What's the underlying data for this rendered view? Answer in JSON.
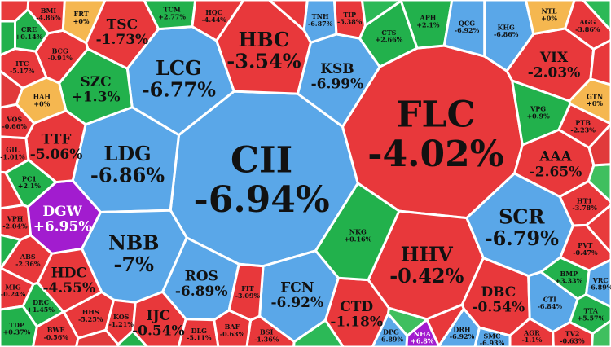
{
  "chart_data": {
    "type": "voronoi-treemap",
    "title": "",
    "value_unit": "% change",
    "status_colors": {
      "up": "#22b14c",
      "down": "#e8383b",
      "floor": "#5aa7e8",
      "ceiling": "#a21ccf",
      "unchanged": "#f5b750"
    },
    "stocks": [
      {
        "ticker": "CII",
        "change": "-6.94%",
        "status": "floor",
        "size": "xl"
      },
      {
        "ticker": "FLC",
        "change": "-4.02%",
        "status": "down",
        "size": "xl"
      },
      {
        "ticker": "LCG",
        "change": "-6.77%",
        "status": "floor",
        "size": "l"
      },
      {
        "ticker": "LDG",
        "change": "-6.86%",
        "status": "floor",
        "size": "l"
      },
      {
        "ticker": "NBB",
        "change": "-7%",
        "status": "floor",
        "size": "l"
      },
      {
        "ticker": "HBC",
        "change": "-3.54%",
        "status": "down",
        "size": "l"
      },
      {
        "ticker": "HHV",
        "change": "-0.42%",
        "status": "down",
        "size": "l"
      },
      {
        "ticker": "SCR",
        "change": "-6.79%",
        "status": "floor",
        "size": "l"
      },
      {
        "ticker": "SZC",
        "change": "+1.3%",
        "status": "up",
        "size": "m"
      },
      {
        "ticker": "DGW",
        "change": "+6.95%",
        "status": "ceiling",
        "size": "m"
      },
      {
        "ticker": "KSB",
        "change": "-6.99%",
        "status": "floor",
        "size": "m"
      },
      {
        "ticker": "TSC",
        "change": "-1.73%",
        "status": "down",
        "size": "m"
      },
      {
        "ticker": "VIX",
        "change": "-2.03%",
        "status": "down",
        "size": "m"
      },
      {
        "ticker": "AAA",
        "change": "-2.65%",
        "status": "down",
        "size": "m"
      },
      {
        "ticker": "ROS",
        "change": "-6.89%",
        "status": "floor",
        "size": "m"
      },
      {
        "ticker": "FCN",
        "change": "-6.92%",
        "status": "floor",
        "size": "m"
      },
      {
        "ticker": "TTF",
        "change": "-5.06%",
        "status": "down",
        "size": "m"
      },
      {
        "ticker": "HDC",
        "change": "-4.55%",
        "status": "down",
        "size": "m"
      },
      {
        "ticker": "DBC",
        "change": "-0.54%",
        "status": "down",
        "size": "m"
      },
      {
        "ticker": "CTD",
        "change": "-1.18%",
        "status": "down",
        "size": "m"
      },
      {
        "ticker": "IJC",
        "change": "-0.54%",
        "status": "down",
        "size": "m"
      },
      {
        "ticker": "KHG",
        "change": "-6.86%",
        "status": "floor",
        "size": "s"
      },
      {
        "ticker": "APH",
        "change": "+2.1%",
        "status": "up",
        "size": "s"
      },
      {
        "ticker": "CTS",
        "change": "+2.66%",
        "status": "up",
        "size": "s"
      },
      {
        "ticker": "QCG",
        "change": "-6.92%",
        "status": "floor",
        "size": "s"
      },
      {
        "ticker": "NTL",
        "change": "+0%",
        "status": "unchanged",
        "size": "s"
      },
      {
        "ticker": "AGG",
        "change": "-3.86%",
        "status": "down",
        "size": "s"
      },
      {
        "ticker": "VPG",
        "change": "+0.9%",
        "status": "up",
        "size": "s"
      },
      {
        "ticker": "GTN",
        "change": "+0%",
        "status": "unchanged",
        "size": "s"
      },
      {
        "ticker": "PTB",
        "change": "-2.23%",
        "status": "down",
        "size": "s"
      },
      {
        "ticker": "HT1",
        "change": "-3.78%",
        "status": "down",
        "size": "s"
      },
      {
        "ticker": "PVT",
        "change": "-0.47%",
        "status": "down",
        "size": "s"
      },
      {
        "ticker": "NKG",
        "change": "+0.16%",
        "status": "up",
        "size": "s"
      },
      {
        "ticker": "CTI",
        "change": "-6.84%",
        "status": "floor",
        "size": "s"
      },
      {
        "ticker": "BMP",
        "change": "+3.33%",
        "status": "up",
        "size": "s"
      },
      {
        "ticker": "HAH",
        "change": "+0%",
        "status": "unchanged",
        "size": "s"
      },
      {
        "ticker": "PC1",
        "change": "+2.1%",
        "status": "up",
        "size": "s"
      },
      {
        "ticker": "ABS",
        "change": "-2.36%",
        "status": "down",
        "size": "s"
      },
      {
        "ticker": "VPH",
        "change": "-2.04%",
        "status": "down",
        "size": "s"
      },
      {
        "ticker": "GIL",
        "change": "-1.01%",
        "status": "down",
        "size": "s"
      },
      {
        "ticker": "VOS",
        "change": "-0.66%",
        "status": "down",
        "size": "s"
      },
      {
        "ticker": "ITC",
        "change": "-5.17%",
        "status": "down",
        "size": "s"
      },
      {
        "ticker": "BCG",
        "change": "-0.91%",
        "status": "down",
        "size": "s"
      },
      {
        "ticker": "FRT",
        "change": "+0%",
        "status": "unchanged",
        "size": "s"
      },
      {
        "ticker": "TCM",
        "change": "+2.77%",
        "status": "up",
        "size": "s"
      },
      {
        "ticker": "HHS",
        "change": "-5.25%",
        "status": "down",
        "size": "s"
      },
      {
        "ticker": "DRC",
        "change": "+1.45%",
        "status": "up",
        "size": "s"
      },
      {
        "ticker": "MIG",
        "change": "-0.24%",
        "status": "down",
        "size": "s"
      },
      {
        "ticker": "TDP",
        "change": "+0.37%",
        "status": "up",
        "size": "s"
      },
      {
        "ticker": "BWE",
        "change": "-0.56%",
        "status": "down",
        "size": "s"
      },
      {
        "ticker": "KOS",
        "change": "-1.21%",
        "status": "down",
        "size": "s"
      },
      {
        "ticker": "DPG",
        "change": "-6.89%",
        "status": "floor",
        "size": "s"
      },
      {
        "ticker": "NHA",
        "change": "+6.8%",
        "status": "ceiling",
        "size": "s"
      },
      {
        "ticker": "DRH",
        "change": "-6.92%",
        "status": "floor",
        "size": "s"
      },
      {
        "ticker": "TTA",
        "change": "+5.57%",
        "status": "up",
        "size": "s"
      },
      {
        "ticker": "VRC",
        "change": "-6.89%",
        "status": "floor",
        "size": "s"
      },
      {
        "ticker": "TNH",
        "change": "-6.87%",
        "status": "floor",
        "size": "s"
      },
      {
        "ticker": "TIP",
        "change": "-5.38%",
        "status": "down",
        "size": "s"
      },
      {
        "ticker": "HQC",
        "change": "-4.44%",
        "status": "down",
        "size": "s"
      },
      {
        "ticker": "BMI",
        "change": "-4.86%",
        "status": "down",
        "size": "s"
      },
      {
        "ticker": "CRE",
        "change": "+0.14%",
        "status": "up",
        "size": "s"
      },
      {
        "ticker": "FIT",
        "change": "-3.09%",
        "status": "down",
        "size": "s"
      },
      {
        "ticker": "DLG",
        "change": "-5.11%",
        "status": "down",
        "size": "s"
      },
      {
        "ticker": "BSI",
        "change": "-1.36%",
        "status": "down",
        "size": "s"
      },
      {
        "ticker": "BAF",
        "change": "-0.63%",
        "status": "down",
        "size": "s"
      },
      {
        "ticker": "TV2",
        "change": "-0.63%",
        "status": "down",
        "size": "s"
      },
      {
        "ticker": "AGR",
        "change": "-1.1%",
        "status": "down",
        "size": "s"
      },
      {
        "ticker": "SMC",
        "change": "-6.93%",
        "status": "floor",
        "size": "s"
      }
    ]
  }
}
